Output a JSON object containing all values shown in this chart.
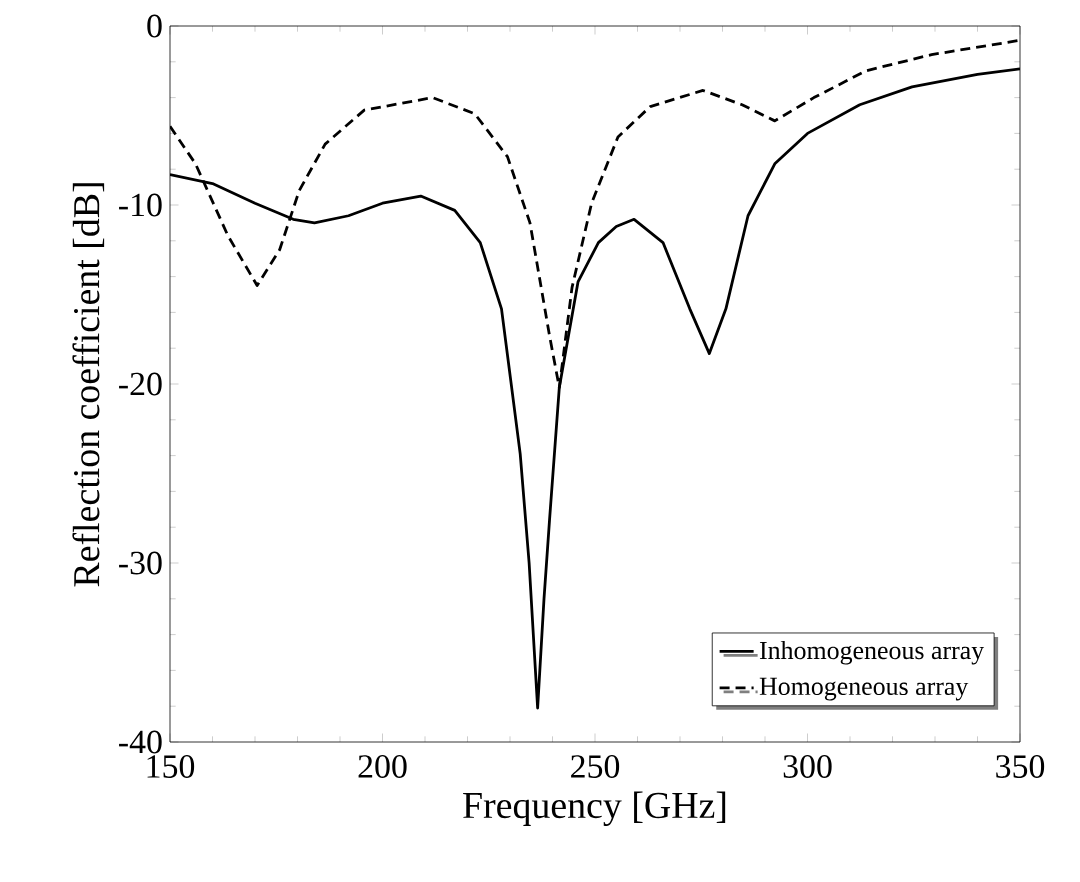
{
  "chart_data": {
    "type": "line",
    "xlabel": "Frequency [GHz]",
    "ylabel": "Reflection coefficient [dB]",
    "xlim": [
      150,
      350
    ],
    "ylim": [
      -40,
      0
    ],
    "xticks": [
      150,
      200,
      250,
      300,
      350
    ],
    "yticks": [
      -40,
      -30,
      -20,
      -10,
      0
    ],
    "legend": "bottom right",
    "grid": false,
    "series": [
      {
        "name": "Inhomogeneous array",
        "color": "#000000",
        "line_style": "solid",
        "x": [
          150,
          160,
          170,
          179,
          184,
          192,
          200,
          209,
          217,
          223,
          228,
          232.4,
          234.5,
          236.5,
          238,
          239.3,
          241.6,
          246,
          250.8,
          255,
          259.2,
          266,
          272.3,
          276.9,
          280.8,
          286,
          292.3,
          300,
          312.3,
          324.6,
          340,
          350
        ],
        "values": [
          -8.3,
          -8.8,
          -9.9,
          -10.8,
          -11,
          -10.6,
          -9.9,
          -9.5,
          -10.3,
          -12.1,
          -15.8,
          -23.9,
          -30,
          -38.1,
          -32,
          -27.6,
          -20.2,
          -14.3,
          -12.1,
          -11.2,
          -10.8,
          -12.1,
          -15.8,
          -18.3,
          -15.8,
          -10.6,
          -7.7,
          -6,
          -4.4,
          -3.4,
          -2.7,
          -2.4
        ]
      },
      {
        "name": "Homogeneous array",
        "color": "#000000",
        "line_style": "dashed",
        "x": [
          150,
          156,
          163.6,
          170.5,
          175.8,
          180.4,
          186.5,
          195.7,
          211.8,
          221.7,
          229.4,
          234.7,
          239.3,
          241.6,
          244.6,
          249.2,
          255.4,
          263,
          275.4,
          284.6,
          292.3,
          301.5,
          313.8,
          329.2,
          350
        ],
        "values": [
          -5.6,
          -7.7,
          -11.7,
          -14.5,
          -12.5,
          -9.2,
          -6.6,
          -4.7,
          -4,
          -4.9,
          -7.3,
          -11,
          -17.3,
          -20.2,
          -14.6,
          -9.9,
          -6.2,
          -4.5,
          -3.6,
          -4.4,
          -5.3,
          -4,
          -2.5,
          -1.6,
          -0.8
        ]
      }
    ]
  }
}
